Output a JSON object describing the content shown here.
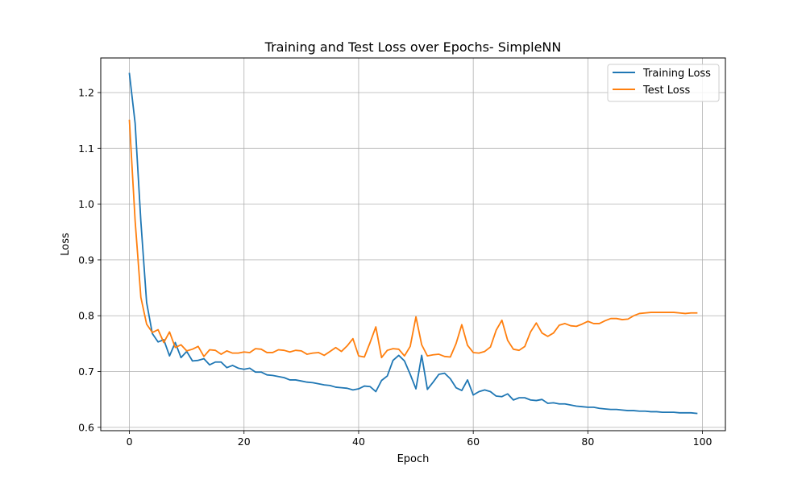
{
  "chart_data": {
    "type": "line",
    "title": "Training and Test Loss over Epochs- SimpleNN",
    "xlabel": "Epoch",
    "ylabel": "Loss",
    "xlim": [
      -5,
      104
    ],
    "ylim": [
      0.594,
      1.262
    ],
    "xticks": [
      0,
      20,
      40,
      60,
      80,
      100
    ],
    "yticks": [
      0.6,
      0.7,
      0.8,
      0.9,
      1.0,
      1.1,
      1.2
    ],
    "xtick_labels": [
      "0",
      "20",
      "40",
      "60",
      "80",
      "100"
    ],
    "ytick_labels": [
      "0.6",
      "0.7",
      "0.8",
      "0.9",
      "1.0",
      "1.1",
      "1.2"
    ],
    "grid": true,
    "legend_position": "upper right",
    "series": [
      {
        "name": "Training Loss",
        "color": "#1f77b4",
        "values": [
          1.234,
          1.145,
          0.969,
          0.824,
          0.768,
          0.753,
          0.757,
          0.728,
          0.752,
          0.725,
          0.736,
          0.719,
          0.72,
          0.723,
          0.712,
          0.717,
          0.717,
          0.707,
          0.711,
          0.706,
          0.704,
          0.706,
          0.699,
          0.699,
          0.694,
          0.693,
          0.691,
          0.689,
          0.685,
          0.685,
          0.683,
          0.681,
          0.68,
          0.678,
          0.676,
          0.675,
          0.672,
          0.671,
          0.67,
          0.667,
          0.669,
          0.674,
          0.673,
          0.664,
          0.684,
          0.692,
          0.72,
          0.729,
          0.719,
          0.695,
          0.669,
          0.729,
          0.668,
          0.681,
          0.695,
          0.697,
          0.687,
          0.671,
          0.666,
          0.685,
          0.658,
          0.664,
          0.667,
          0.664,
          0.656,
          0.655,
          0.66,
          0.649,
          0.653,
          0.653,
          0.649,
          0.648,
          0.65,
          0.643,
          0.644,
          0.642,
          0.642,
          0.64,
          0.638,
          0.637,
          0.636,
          0.636,
          0.634,
          0.633,
          0.632,
          0.632,
          0.631,
          0.63,
          0.63,
          0.629,
          0.629,
          0.628,
          0.628,
          0.627,
          0.627,
          0.627,
          0.626,
          0.626,
          0.626,
          0.625
        ]
      },
      {
        "name": "Test Loss",
        "color": "#ff7f0e",
        "values": [
          1.15,
          0.97,
          0.833,
          0.785,
          0.77,
          0.775,
          0.752,
          0.771,
          0.743,
          0.748,
          0.737,
          0.74,
          0.745,
          0.727,
          0.739,
          0.738,
          0.731,
          0.737,
          0.733,
          0.733,
          0.735,
          0.734,
          0.741,
          0.74,
          0.734,
          0.734,
          0.739,
          0.738,
          0.735,
          0.738,
          0.737,
          0.731,
          0.733,
          0.734,
          0.729,
          0.736,
          0.743,
          0.736,
          0.746,
          0.759,
          0.728,
          0.726,
          0.752,
          0.78,
          0.725,
          0.738,
          0.741,
          0.74,
          0.728,
          0.745,
          0.798,
          0.748,
          0.728,
          0.73,
          0.731,
          0.727,
          0.726,
          0.75,
          0.784,
          0.747,
          0.734,
          0.733,
          0.736,
          0.744,
          0.774,
          0.792,
          0.756,
          0.74,
          0.738,
          0.745,
          0.771,
          0.787,
          0.769,
          0.763,
          0.769,
          0.783,
          0.786,
          0.782,
          0.781,
          0.785,
          0.79,
          0.786,
          0.786,
          0.791,
          0.795,
          0.795,
          0.793,
          0.794,
          0.8,
          0.804,
          0.805,
          0.806,
          0.806,
          0.806,
          0.806,
          0.806,
          0.805,
          0.804,
          0.805,
          0.805
        ]
      }
    ]
  },
  "colors": {
    "grid": "#b0b0b0",
    "axes": "#000000",
    "legend_border": "#cccccc"
  }
}
